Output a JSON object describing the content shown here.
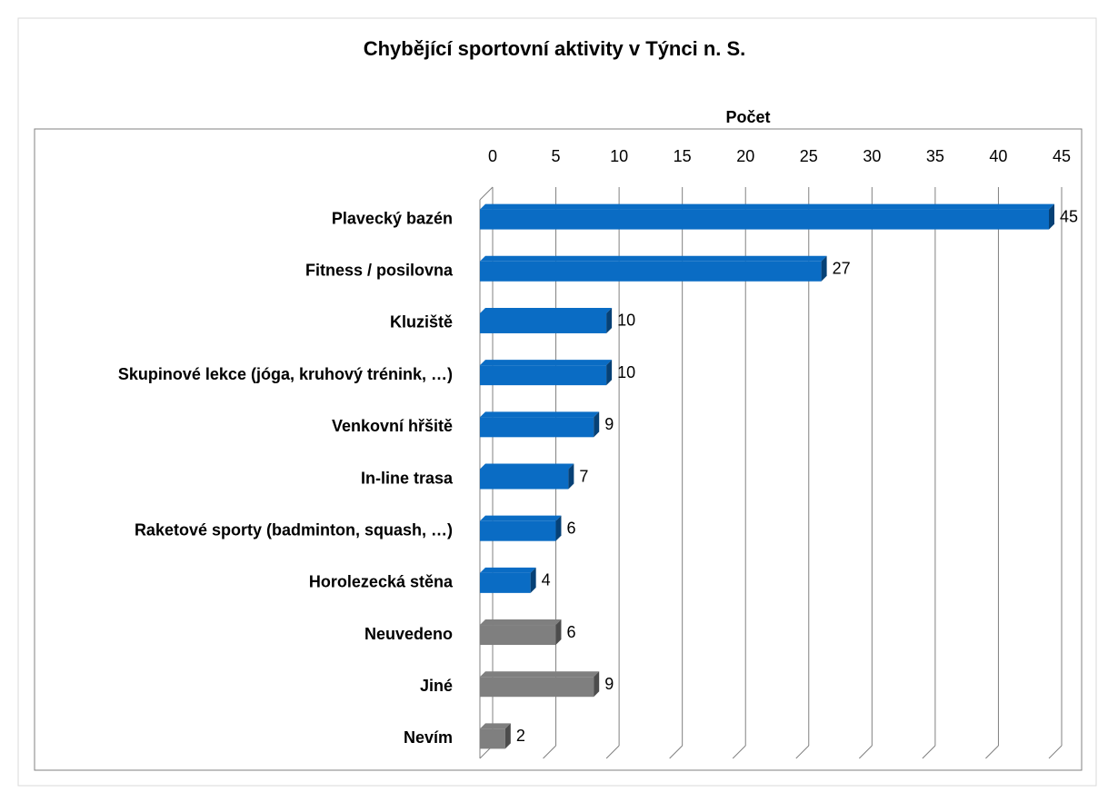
{
  "chart_data": {
    "type": "bar",
    "orientation": "horizontal",
    "title": "Chybějící sportovní aktivity  v Týnci n. S.",
    "x_label": "Počet",
    "categories": [
      "Plavecký bazén",
      "Fitness / posilovna",
      "Kluziště",
      "Skupinové lekce (jóga, kruhový trénink, …)",
      "Venkovní hřšitě",
      "In-line trasa",
      "Raketové sporty (badminton, squash, …)",
      "Horolezecká stěna",
      "Neuvedeno",
      "Jiné",
      "Nevím"
    ],
    "values": [
      45,
      27,
      10,
      10,
      9,
      7,
      6,
      4,
      6,
      9,
      2
    ],
    "colors": [
      "#0a6cc4",
      "#0a6cc4",
      "#0a6cc4",
      "#0a6cc4",
      "#0a6cc4",
      "#0a6cc4",
      "#0a6cc4",
      "#0a6cc4",
      "#7f7f7f",
      "#7f7f7f",
      "#7f7f7f"
    ],
    "xlim": [
      0,
      45
    ],
    "xticks": [
      0,
      5,
      10,
      15,
      20,
      25,
      30,
      35,
      40,
      45
    ],
    "grid": true
  }
}
